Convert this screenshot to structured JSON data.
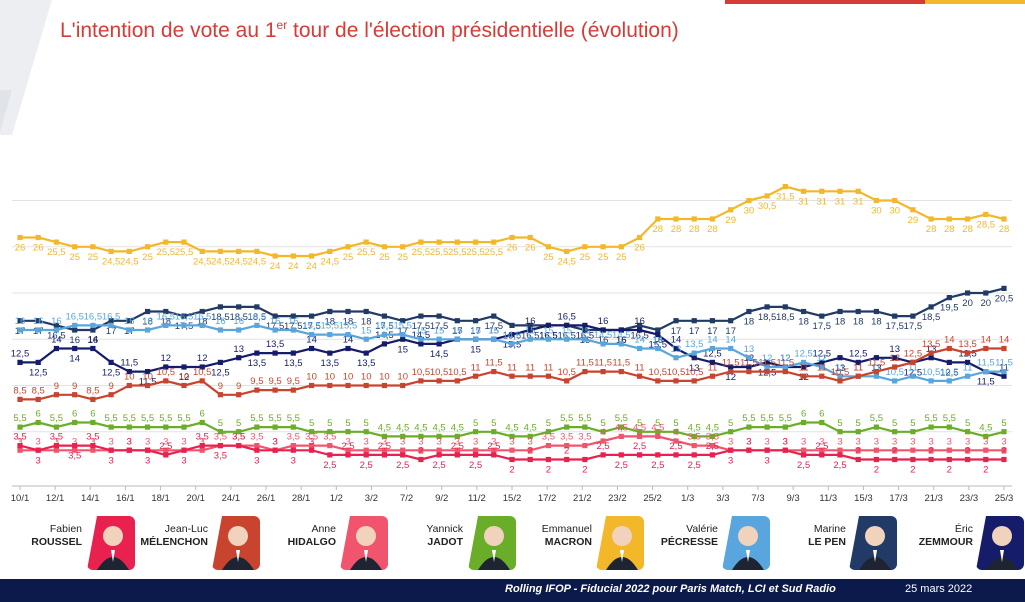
{
  "header": {
    "title_pre": "L'intention de vote au 1",
    "title_sup": "er",
    "title_post": " tour de l'élection présidentielle (évolution)"
  },
  "footer": {
    "source": "Rolling IFOP - Fiducial 2022 pour Paris Match, LCI et Sud Radio",
    "date": "25 mars 2022"
  },
  "candidates": [
    {
      "first": "Fabien",
      "last": "ROUSSEL",
      "color": "#e8214f"
    },
    {
      "first": "Jean-Luc",
      "last": "MÉLENCHON",
      "color": "#c9442f"
    },
    {
      "first": "Anne",
      "last": "HIDALGO",
      "color": "#f0556d"
    },
    {
      "first": "Yannick",
      "last": "JADOT",
      "color": "#6aad29"
    },
    {
      "first": "Emmanuel",
      "last": "MACRON",
      "color": "#f3b72a"
    },
    {
      "first": "Valérie",
      "last": "PÉCRESSE",
      "color": "#58a6dd"
    },
    {
      "first": "Marine",
      "last": "LE PEN",
      "color": "#223a66"
    },
    {
      "first": "Éric",
      "last": "ZEMMOUR",
      "color": "#151d6a"
    }
  ],
  "chart_data": {
    "type": "line",
    "title": "L'intention de vote au 1er tour de l'élection présidentielle (évolution)",
    "xlabel": "",
    "ylabel": "",
    "ylim": [
      0,
      34
    ],
    "grid": true,
    "x_tick_labels": [
      "10/1",
      "12/1",
      "14/1",
      "16/1",
      "18/1",
      "20/1",
      "24/1",
      "26/1",
      "28/1",
      "1/2",
      "3/2",
      "7/2",
      "9/2",
      "11/2",
      "15/2",
      "17/2",
      "21/2",
      "23/2",
      "25/2",
      "1/3",
      "3/3",
      "7/3",
      "9/3",
      "11/3",
      "15/3",
      "17/3",
      "21/3",
      "23/3",
      "25/3"
    ],
    "series": [
      {
        "name": "Emmanuel MACRON",
        "color": "#f3b72a",
        "values": [
          26,
          26,
          25.5,
          25,
          25,
          24.5,
          24.5,
          25,
          25.5,
          25.5,
          24.5,
          24.5,
          24.5,
          24.5,
          24,
          24,
          24,
          24.5,
          25,
          25.5,
          25,
          25,
          25.5,
          25.5,
          25.5,
          25.5,
          25.5,
          26,
          26,
          25,
          24.5,
          25,
          25,
          25,
          26,
          28,
          28,
          28,
          28,
          29,
          30,
          30.5,
          31.5,
          31,
          31,
          31,
          31,
          30,
          30,
          29,
          28,
          28,
          28,
          28.5,
          28
        ]
      },
      {
        "name": "Marine LE PEN",
        "color": "#223a66",
        "values": [
          17,
          17,
          16.5,
          16,
          16,
          17,
          17,
          18,
          18,
          17.5,
          18,
          18.5,
          18.5,
          18.5,
          17.5,
          17.5,
          17.5,
          18,
          18,
          18,
          17.5,
          17,
          17.5,
          17.5,
          17,
          17,
          17.5,
          16.5,
          16.5,
          16.5,
          16.5,
          16,
          16,
          16,
          16.5,
          16,
          17,
          17,
          17,
          17,
          18,
          18.5,
          18.5,
          18,
          17.5,
          18,
          18,
          18,
          17.5,
          17.5,
          18.5,
          19.5,
          20,
          20,
          20.5
        ]
      },
      {
        "name": "Éric ZEMMOUR",
        "color": "#151d6a",
        "values": [
          12.5,
          12.5,
          14,
          14,
          14,
          12.5,
          11.5,
          11.5,
          12,
          12,
          12,
          12.5,
          13,
          13.5,
          13.5,
          13.5,
          14,
          13.5,
          14,
          13.5,
          14.5,
          15,
          14.5,
          14.5,
          15,
          15,
          15,
          15.5,
          16,
          16.5,
          16.5,
          16.5,
          16,
          16,
          16,
          15.5,
          14,
          13,
          12.5,
          12,
          12,
          12.5,
          12,
          12,
          12.5,
          13,
          12.5,
          13,
          13,
          12.5,
          13,
          12.5,
          12.5,
          11.5,
          11
        ]
      },
      {
        "name": "Valérie PÉCRESSE",
        "color": "#58a6dd",
        "values": [
          16,
          16,
          16,
          16.5,
          16.5,
          16.5,
          16,
          16,
          16.5,
          16.5,
          16.5,
          16,
          16,
          16.5,
          16,
          16,
          15.5,
          15.5,
          15.5,
          15,
          15.5,
          15.5,
          15,
          15,
          15,
          15,
          15,
          14.5,
          15,
          15,
          15,
          15,
          14.5,
          14.5,
          14,
          14,
          13,
          13.5,
          14,
          14,
          13,
          12,
          12,
          12.5,
          12,
          11,
          11,
          11,
          10.5,
          11,
          10.5,
          10.5,
          11,
          11.5,
          11.5
        ]
      },
      {
        "name": "Jean-Luc MÉLENCHON",
        "color": "#c9442f",
        "values": [
          8.5,
          8.5,
          9,
          9,
          8.5,
          9,
          10,
          10,
          10.5,
          10,
          10.5,
          9,
          9,
          9.5,
          9.5,
          9.5,
          10,
          10,
          10,
          10,
          10,
          10,
          10.5,
          10.5,
          10.5,
          11,
          11.5,
          11,
          11,
          11,
          10.5,
          11.5,
          11.5,
          11.5,
          11,
          10.5,
          10.5,
          10.5,
          11,
          11.5,
          11.5,
          11.5,
          11.5,
          11,
          11,
          10.5,
          11,
          11.5,
          12,
          12.5,
          13.5,
          14,
          13.5,
          14,
          14
        ]
      },
      {
        "name": "Yannick JADOT",
        "color": "#6aad29",
        "values": [
          5.5,
          6,
          5.5,
          6,
          6,
          5.5,
          5.5,
          5.5,
          5.5,
          5.5,
          6,
          5,
          5,
          5.5,
          5.5,
          5.5,
          5,
          5,
          5,
          5,
          4.5,
          4.5,
          4.5,
          4.5,
          4.5,
          5,
          5,
          4.5,
          4.5,
          5,
          5.5,
          5.5,
          5,
          5.5,
          5,
          5,
          5,
          4.5,
          4.5,
          5,
          5.5,
          5.5,
          5.5,
          6,
          6,
          5,
          5,
          5.5,
          5,
          5,
          5.5,
          5.5,
          5,
          4.5,
          5
        ]
      },
      {
        "name": "Anne HIDALGO",
        "color": "#f0556d",
        "values": [
          3,
          3,
          3,
          3,
          3,
          3,
          3,
          3,
          3,
          3,
          3,
          3.5,
          3.5,
          3.5,
          3,
          3.5,
          3.5,
          3.5,
          3,
          3,
          3,
          3,
          3,
          3,
          3,
          3,
          3,
          3,
          3,
          3.5,
          3.5,
          3.5,
          4,
          4.5,
          4.5,
          4.5,
          4,
          3.5,
          3.5,
          3,
          3,
          3,
          3,
          3,
          3,
          3,
          3,
          3,
          3,
          3,
          3,
          3,
          3,
          3,
          3
        ]
      },
      {
        "name": "Fabien ROUSSEL",
        "color": "#e8214f",
        "values": [
          3.5,
          3,
          3.5,
          3.5,
          3.5,
          3,
          3,
          3,
          2.5,
          3,
          3.5,
          3.5,
          3.5,
          3,
          3,
          3,
          3,
          2.5,
          2.5,
          2.5,
          2.5,
          2.5,
          2,
          2.5,
          2.5,
          2.5,
          2.5,
          2,
          2,
          2,
          2,
          2,
          2.5,
          2.5,
          2.5,
          2.5,
          2.5,
          2.5,
          2.5,
          3,
          3,
          3,
          3,
          2.5,
          2.5,
          2.5,
          2,
          2,
          2,
          2,
          2,
          2,
          2,
          2,
          2
        ]
      }
    ]
  }
}
